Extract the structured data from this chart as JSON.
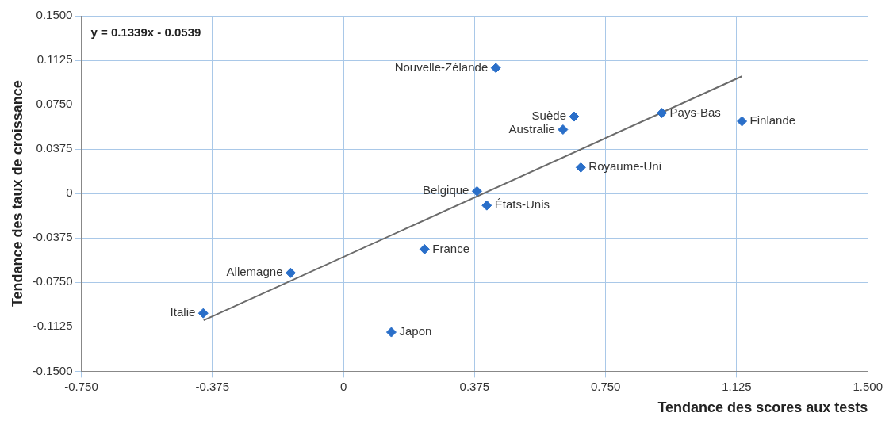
{
  "chart_data": {
    "type": "scatter",
    "xlabel": "Tendance des scores aux tests",
    "ylabel": "Tendance des taux de croissance",
    "xlim": [
      -0.75,
      1.5
    ],
    "ylim": [
      -0.15,
      0.15
    ],
    "xticks": [
      {
        "value": -0.75,
        "label": "-0.750"
      },
      -0.375,
      0,
      0.375,
      {
        "value": 0.75,
        "label": "0.750"
      },
      1.125,
      {
        "value": 1.5,
        "label": "1.500"
      }
    ],
    "yticks": [
      {
        "value": -0.15,
        "label": "-0.1500"
      },
      -0.1125,
      {
        "value": -0.075,
        "label": "-0.0750"
      },
      -0.0375,
      0,
      0.0375,
      {
        "value": 0.075,
        "label": "0.0750"
      },
      0.1125,
      {
        "value": 0.15,
        "label": "0.1500"
      }
    ],
    "grid": true,
    "series": [
      {
        "type": "scatter",
        "marker": "diamond",
        "color": "#2a6fc9",
        "x": [
          0.436,
          0.66,
          0.628,
          0.911,
          1.14,
          0.679,
          0.382,
          0.41,
          0.232,
          -0.151,
          -0.401,
          0.137
        ],
        "values": [
          0.106,
          0.065,
          0.054,
          0.068,
          0.061,
          0.022,
          0.002,
          -0.01,
          -0.047,
          -0.067,
          -0.101,
          -0.117
        ]
      },
      {
        "type": "line",
        "marker": "none",
        "color": "#6b6b6b",
        "x": [
          -0.4,
          1.14
        ],
        "values": [
          -0.107,
          0.099
        ]
      }
    ],
    "annotations": [
      "y = 0.1339x - 0.0539",
      {
        "text": "Nouvelle-Zélande",
        "x": 0.436,
        "y": 0.106
      },
      {
        "text": "Suède",
        "x": 0.66,
        "y": 0.065
      },
      {
        "text": "Australie",
        "x": 0.628,
        "y": 0.054
      },
      {
        "text": "Pays-Bas",
        "x": 0.911,
        "y": 0.068
      },
      {
        "text": "Finlande",
        "x": 1.14,
        "y": 0.061
      },
      {
        "text": "Royaume-Uni",
        "x": 0.679,
        "y": 0.022
      },
      {
        "text": "Belgique",
        "x": 0.382,
        "y": 0.002
      },
      {
        "text": "États-Unis",
        "x": 0.41,
        "y": -0.01
      },
      {
        "text": "France",
        "x": 0.232,
        "y": -0.047
      },
      {
        "text": "Allemagne",
        "x": -0.151,
        "y": -0.067
      },
      {
        "text": "Italie",
        "x": -0.401,
        "y": -0.101
      },
      {
        "text": "Japon",
        "x": 0.137,
        "y": -0.117
      }
    ]
  }
}
